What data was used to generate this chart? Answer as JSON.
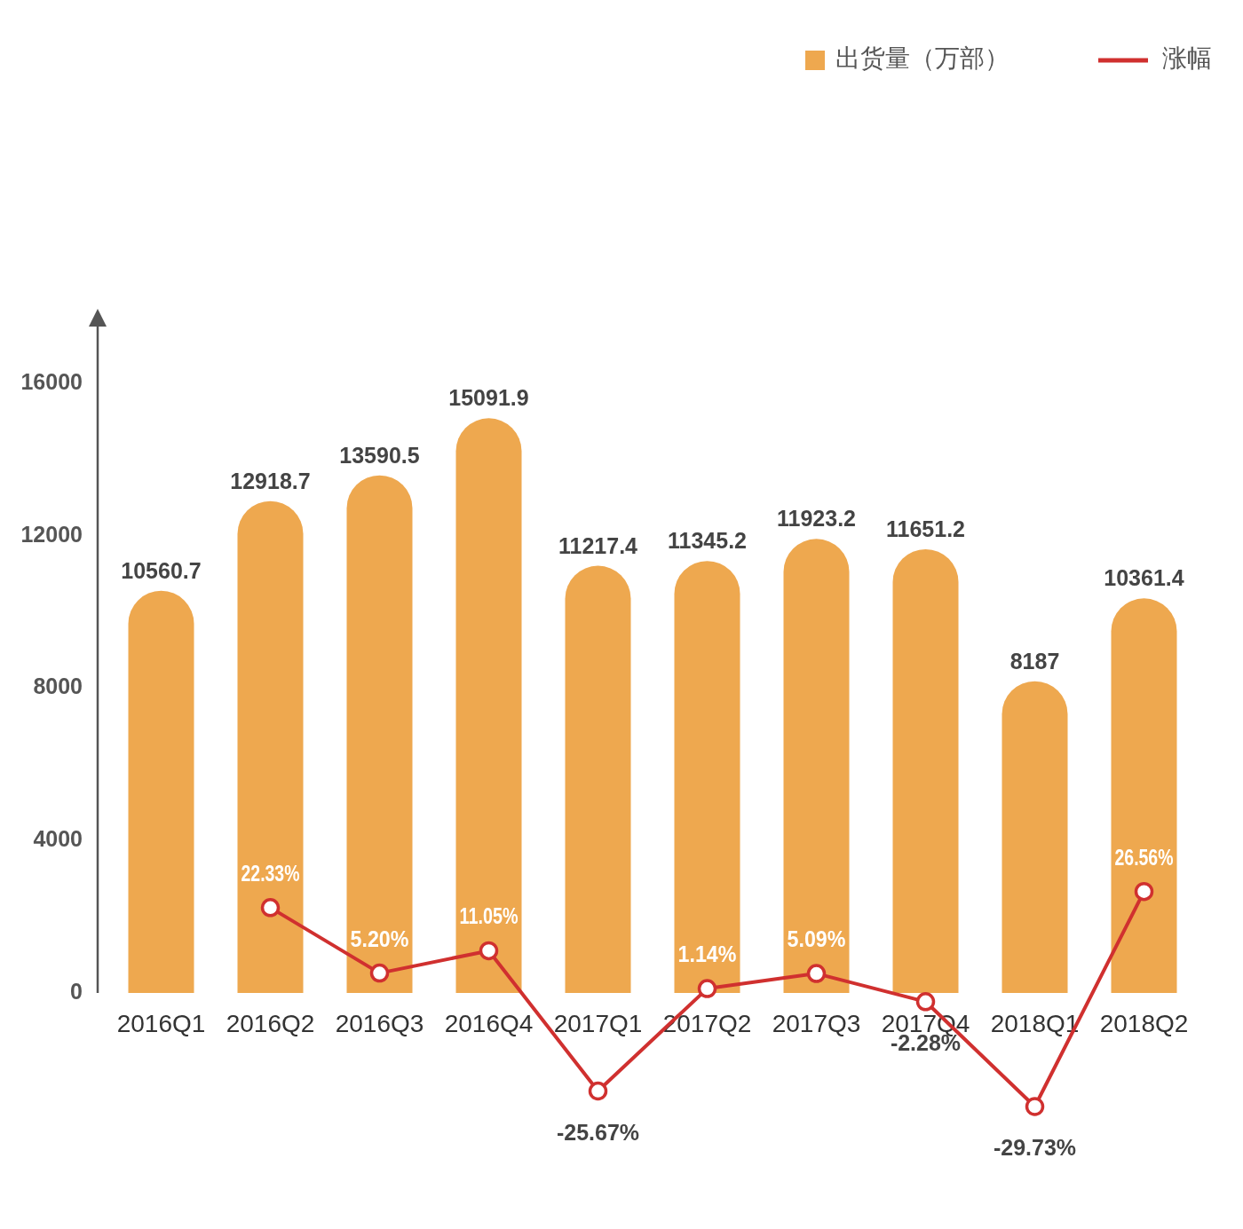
{
  "chart_data": {
    "type": "bar",
    "categories": [
      "2016Q1",
      "2016Q2",
      "2016Q3",
      "2016Q4",
      "2017Q1",
      "2017Q2",
      "2017Q3",
      "2017Q4",
      "2018Q1",
      "2018Q2"
    ],
    "legend": "top right",
    "data_labels": true,
    "ylim": [
      0,
      17500
    ],
    "yticks": [
      0,
      4000,
      8000,
      12000,
      16000
    ],
    "series": [
      {
        "name": "出货量（万部）",
        "color": "#eea84f",
        "values": [
          10560.7,
          12918.7,
          13590.5,
          15091.9,
          11217.4,
          11345.2,
          11923.2,
          11651.2,
          8187,
          10361.4
        ]
      },
      {
        "name": "涨幅",
        "type": "line",
        "axis": "y2",
        "marker": "circle",
        "color": "#d0302f",
        "values": [
          null,
          22.33,
          5.2,
          11.05,
          -25.67,
          1.14,
          5.09,
          -2.28,
          -29.73,
          26.56
        ],
        "value_labels": [
          null,
          "22.33%",
          "5.20%",
          "11.05%",
          "-25.67%",
          "1.14%",
          "5.09%",
          "-2.28%",
          "-29.73%",
          "26.56%"
        ]
      }
    ]
  }
}
